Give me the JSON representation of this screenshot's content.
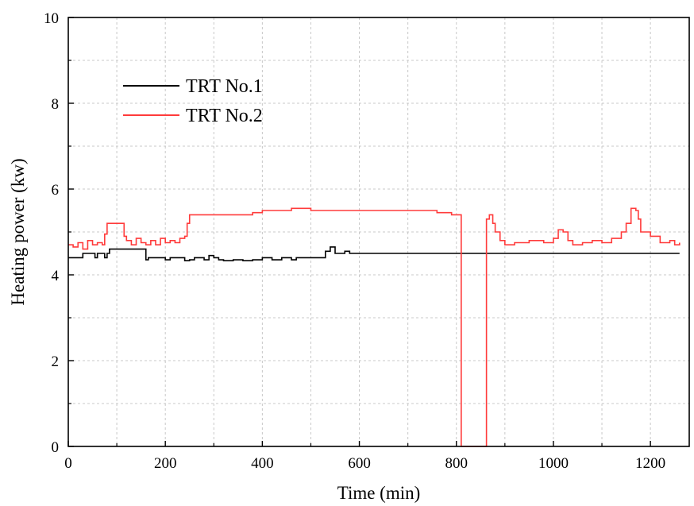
{
  "chart_data": {
    "type": "line",
    "title": "",
    "xlabel": "Time (min)",
    "ylabel": "Heating power (kw)",
    "xlim": [
      0,
      1280
    ],
    "ylim": [
      0,
      10
    ],
    "xticks": [
      0,
      200,
      400,
      600,
      800,
      1000,
      1200
    ],
    "yticks": [
      0,
      2,
      4,
      6,
      8,
      10
    ],
    "grid": true,
    "legend_position": "top-left",
    "series": [
      {
        "name": "TRT No.1",
        "color": "#000000",
        "x": [
          0,
          25,
          30,
          55,
          60,
          75,
          80,
          85,
          100,
          115,
          150,
          160,
          165,
          200,
          210,
          240,
          250,
          260,
          280,
          290,
          300,
          310,
          320,
          340,
          360,
          380,
          400,
          420,
          440,
          460,
          470,
          480,
          500,
          520,
          530,
          540,
          550,
          560,
          570,
          580,
          600,
          800,
          1000,
          1200,
          1260
        ],
        "y": [
          4.4,
          4.4,
          4.5,
          4.4,
          4.5,
          4.4,
          4.5,
          4.6,
          4.6,
          4.6,
          4.6,
          4.35,
          4.4,
          4.35,
          4.4,
          4.33,
          4.35,
          4.4,
          4.35,
          4.45,
          4.4,
          4.35,
          4.33,
          4.35,
          4.33,
          4.35,
          4.4,
          4.35,
          4.4,
          4.35,
          4.4,
          4.4,
          4.4,
          4.4,
          4.55,
          4.65,
          4.5,
          4.5,
          4.55,
          4.5,
          4.5,
          4.5,
          4.5,
          4.5,
          4.5
        ]
      },
      {
        "name": "TRT No.2",
        "color": "#ff3b3b",
        "x": [
          0,
          10,
          20,
          30,
          40,
          50,
          60,
          70,
          75,
          80,
          90,
          100,
          110,
          115,
          120,
          130,
          140,
          150,
          160,
          170,
          180,
          190,
          200,
          210,
          220,
          230,
          240,
          245,
          250,
          300,
          350,
          380,
          400,
          450,
          460,
          500,
          540,
          600,
          700,
          760,
          790,
          800,
          805,
          810,
          815,
          860,
          862,
          868,
          875,
          880,
          890,
          900,
          920,
          950,
          980,
          1000,
          1010,
          1020,
          1030,
          1040,
          1060,
          1080,
          1100,
          1120,
          1140,
          1150,
          1160,
          1170,
          1175,
          1180,
          1200,
          1220,
          1240,
          1250,
          1260
        ],
        "y": [
          4.7,
          4.65,
          4.75,
          4.6,
          4.8,
          4.7,
          4.75,
          4.7,
          4.95,
          5.2,
          5.2,
          5.2,
          5.2,
          4.9,
          4.8,
          4.7,
          4.85,
          4.75,
          4.7,
          4.8,
          4.7,
          4.85,
          4.75,
          4.8,
          4.75,
          4.85,
          4.9,
          5.2,
          5.4,
          5.4,
          5.4,
          5.45,
          5.5,
          5.5,
          5.55,
          5.5,
          5.5,
          5.5,
          5.5,
          5.45,
          5.4,
          5.4,
          5.4,
          0,
          0,
          0,
          5.3,
          5.4,
          5.2,
          5.0,
          4.8,
          4.7,
          4.75,
          4.8,
          4.75,
          4.85,
          5.05,
          5.0,
          4.8,
          4.7,
          4.75,
          4.8,
          4.75,
          4.85,
          5.0,
          5.2,
          5.55,
          5.5,
          5.3,
          5.0,
          4.9,
          4.75,
          4.8,
          4.7,
          4.75
        ]
      }
    ]
  }
}
